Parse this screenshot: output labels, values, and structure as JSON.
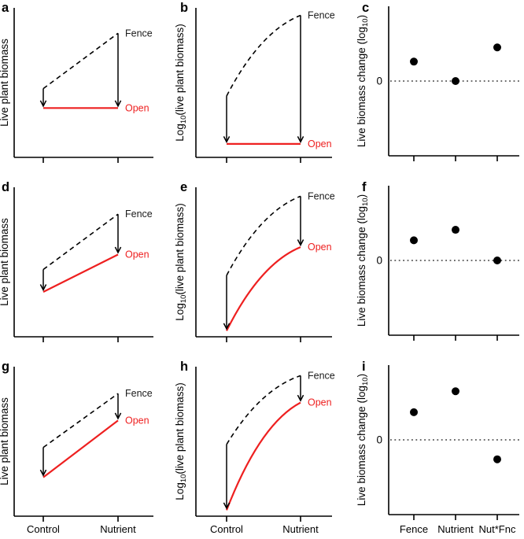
{
  "figure": {
    "description": "Nine-panel conceptual figure of live plant biomass responses to fencing and nutrient addition",
    "background": "#ffffff"
  },
  "colors": {
    "axis": "#000000",
    "text": "#000000",
    "fence_line": "#000000",
    "open_line": "#ee2020",
    "open_label": "#ee2020",
    "fence_label": "#1a1a1a",
    "dot": "#000000",
    "zero_line": "#3a3a3a"
  },
  "series_labels": {
    "fence": "Fence",
    "open": "Open"
  },
  "zero_label": "0",
  "ylabels": {
    "linear": {
      "pre": "Live plant biomass",
      "sub": "",
      "post": ""
    },
    "log": {
      "pre": "Log",
      "sub": "10",
      "post": "(live plant biomass)"
    },
    "change": {
      "pre": "Live biomass change (log",
      "sub": "10",
      "post": ")"
    }
  },
  "x_axis": {
    "treatment_categories": [
      "Control",
      "Nutrient"
    ],
    "effect_categories": [
      "Fence",
      "Nutrient",
      "Nut*Fnc"
    ]
  },
  "chart_data": [
    {
      "id": "a",
      "row": 0,
      "col": 0,
      "type": "line",
      "scale": "linear",
      "ylabel_key": "linear",
      "x_categories": [
        "Control",
        "Nutrient"
      ],
      "show_x_labels": false,
      "ylim": [
        0,
        1
      ],
      "series": [
        {
          "name": "Fence",
          "style": "dashed",
          "values": [
            0.46,
            0.83
          ]
        },
        {
          "name": "Open",
          "style": "solid",
          "values": [
            0.33,
            0.33
          ]
        }
      ],
      "arrows": "fence-to-open-at-each-x"
    },
    {
      "id": "b",
      "row": 0,
      "col": 1,
      "type": "line",
      "scale": "log",
      "ylabel_key": "log",
      "x_categories": [
        "Control",
        "Nutrient"
      ],
      "show_x_labels": false,
      "ylim": [
        0,
        1
      ],
      "series": [
        {
          "name": "Fence",
          "style": "dashed",
          "values": [
            0.41,
            0.95
          ]
        },
        {
          "name": "Open",
          "style": "solid",
          "values": [
            0.09,
            0.09
          ]
        }
      ],
      "arrows": "fence-to-open-at-each-x"
    },
    {
      "id": "c",
      "row": 0,
      "col": 2,
      "type": "scatter",
      "ylabel_key": "change",
      "x_categories": [
        "Fence",
        "Nutrient",
        "Nut*Fnc"
      ],
      "show_x_labels": false,
      "values": [
        0.26,
        0.0,
        0.45
      ],
      "zero_line": true,
      "ylim": [
        -1,
        1
      ]
    },
    {
      "id": "d",
      "row": 1,
      "col": 0,
      "type": "line",
      "scale": "linear",
      "ylabel_key": "linear",
      "x_categories": [
        "Control",
        "Nutrient"
      ],
      "show_x_labels": false,
      "ylim": [
        0,
        1
      ],
      "series": [
        {
          "name": "Fence",
          "style": "dashed",
          "values": [
            0.45,
            0.82
          ]
        },
        {
          "name": "Open",
          "style": "solid",
          "values": [
            0.3,
            0.55
          ]
        }
      ],
      "arrows": "fence-to-open-at-each-x"
    },
    {
      "id": "e",
      "row": 1,
      "col": 1,
      "type": "line",
      "scale": "log",
      "ylabel_key": "log",
      "x_categories": [
        "Control",
        "Nutrient"
      ],
      "show_x_labels": false,
      "ylim": [
        0,
        1
      ],
      "series": [
        {
          "name": "Fence",
          "style": "dashed",
          "values": [
            0.41,
            0.94
          ]
        },
        {
          "name": "Open",
          "style": "solid",
          "values": [
            0.04,
            0.6
          ]
        }
      ],
      "arrows": "fence-to-open-at-each-x"
    },
    {
      "id": "f",
      "row": 1,
      "col": 2,
      "type": "scatter",
      "ylabel_key": "change",
      "x_categories": [
        "Fence",
        "Nutrient",
        "Nut*Fnc"
      ],
      "show_x_labels": false,
      "values": [
        0.27,
        0.41,
        0.0
      ],
      "zero_line": true,
      "ylim": [
        -1,
        1
      ]
    },
    {
      "id": "g",
      "row": 2,
      "col": 0,
      "type": "line",
      "scale": "linear",
      "ylabel_key": "linear",
      "x_categories": [
        "Control",
        "Nutrient"
      ],
      "show_x_labels": true,
      "ylim": [
        0,
        1
      ],
      "series": [
        {
          "name": "Fence",
          "style": "dashed",
          "values": [
            0.46,
            0.82
          ]
        },
        {
          "name": "Open",
          "style": "solid",
          "values": [
            0.26,
            0.64
          ]
        }
      ],
      "arrows": "fence-to-open-at-each-x"
    },
    {
      "id": "h",
      "row": 2,
      "col": 1,
      "type": "line",
      "scale": "log",
      "ylabel_key": "log",
      "x_categories": [
        "Control",
        "Nutrient"
      ],
      "show_x_labels": true,
      "ylim": [
        0,
        1
      ],
      "series": [
        {
          "name": "Fence",
          "style": "dashed",
          "values": [
            0.48,
            0.94
          ]
        },
        {
          "name": "Open",
          "style": "solid",
          "values": [
            0.04,
            0.76
          ]
        }
      ],
      "arrows": "fence-to-open-at-each-x"
    },
    {
      "id": "i",
      "row": 2,
      "col": 2,
      "type": "scatter",
      "ylabel_key": "change",
      "x_categories": [
        "Fence",
        "Nutrient",
        "Nut*Fnc"
      ],
      "show_x_labels": true,
      "values": [
        0.37,
        0.65,
        -0.26
      ],
      "zero_line": true,
      "ylim": [
        -1,
        1
      ]
    }
  ]
}
